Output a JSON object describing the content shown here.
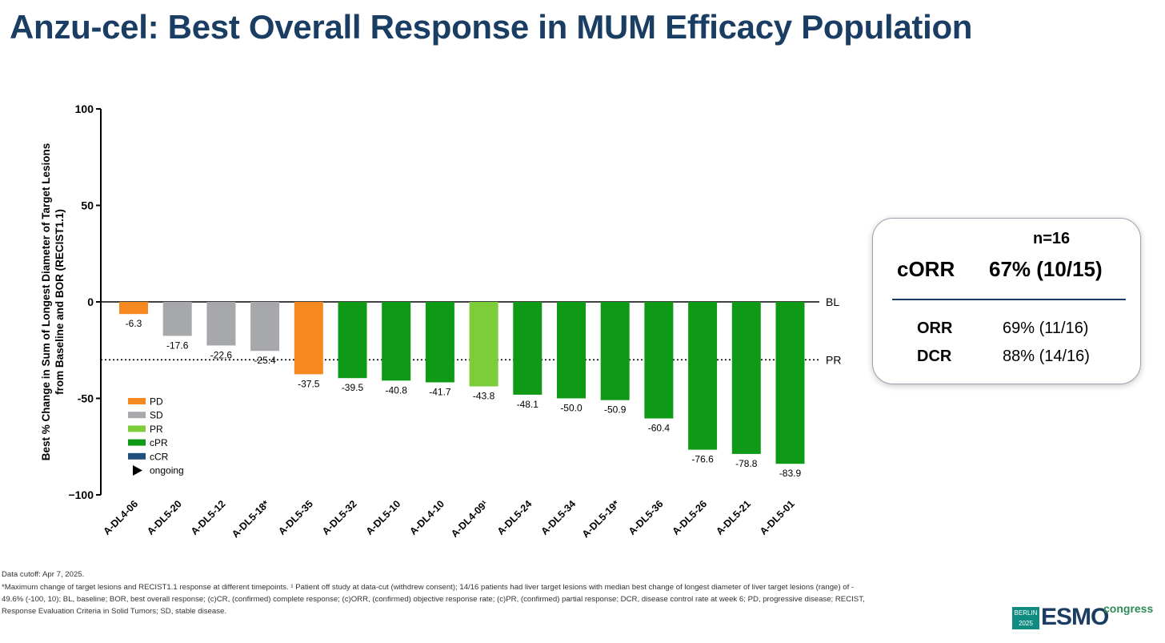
{
  "title": "Anzu-cel: Best Overall Response in MUM Efficacy Population",
  "chart_data": {
    "type": "bar",
    "title": "",
    "ylabel_line1": "Best % Change in Sum of Longest Diameter of Target Lesions",
    "ylabel_line2": "from Baseline and BOR (RECIST1.1)",
    "ylim": [
      -100,
      100
    ],
    "yticks": [
      "100",
      "50",
      "0",
      "-50",
      "−100"
    ],
    "yticks_values": [
      100,
      50,
      0,
      -50,
      -100
    ],
    "reference_lines": [
      {
        "label": "BL",
        "value": 0,
        "style": "solid"
      },
      {
        "label": "PR",
        "value": -30,
        "style": "dotted"
      }
    ],
    "categories": [
      "A-DL4-06",
      "A-DL5-20",
      "A-DL5-12",
      "A-DL5-18*",
      "A-DL5-35",
      "A-DL5-32",
      "A-DL5-10",
      "A-DL4-10",
      "A-DL4-09¹",
      "A-DL5-24",
      "A-DL5-34",
      "A-DL5-19*",
      "A-DL5-36",
      "A-DL5-26",
      "A-DL5-21",
      "A-DL5-01"
    ],
    "values": [
      -6.3,
      -17.6,
      -22.6,
      -25.4,
      -37.5,
      -39.5,
      -40.8,
      -41.7,
      -43.8,
      -48.1,
      -50.0,
      -50.9,
      -60.4,
      -76.6,
      -78.8,
      -83.9
    ],
    "value_labels": [
      "-6.3",
      "-17.6",
      "-22.6",
      "-25.4",
      "-37.5",
      "-39.5",
      "-40.8",
      "-41.7",
      "-43.8",
      "-48.1",
      "-50.0",
      "-50.9",
      "-60.4",
      "-76.6",
      "-78.8",
      "-83.9"
    ],
    "response": [
      "PD",
      "SD",
      "SD",
      "SD",
      "PD",
      "cPR",
      "cPR",
      "cPR",
      "PR",
      "cPR",
      "cPR",
      "cPR",
      "cPR",
      "cPR",
      "cPR",
      "cPR"
    ],
    "legend": [
      {
        "label": "PD",
        "color": "#f5891f"
      },
      {
        "label": "SD",
        "color": "#a6a8ab"
      },
      {
        "label": "PR",
        "color": "#7dcc3a"
      },
      {
        "label": "cPR",
        "color": "#0e9a16"
      },
      {
        "label": "cCR",
        "color": "#1f4f7a"
      },
      {
        "label": "ongoing",
        "marker": "triangle"
      }
    ],
    "legend_position": "bottom-left"
  },
  "stats": {
    "n_label": "n=16",
    "corr_label": "cORR",
    "corr_value": "67% (10/15)",
    "rows": [
      {
        "label": "ORR",
        "value": "69% (11/16)"
      },
      {
        "label": "DCR",
        "value": "88% (14/16)"
      }
    ]
  },
  "footnotes": {
    "line1": "Data cutoff: Apr 7, 2025.",
    "line2": "*Maximum change of target lesions and RECIST1.1 response at different timepoints. ¹ Patient off study at data-cut (withdrew consent); 14/16 patients had liver target lesions with median best change of longest diameter of liver target lesions (range) of -",
    "line3": "49.6% (-100, 10); BL, baseline; BOR, best overall response; (c)CR, (confirmed) complete response; (c)ORR, (confirmed) objective response rate; (c)PR, (confirmed) partial response; DCR, disease control rate at week 6; PD, progressive disease; RECIST,",
    "line4": "Response Evaluation Criteria in Solid Tumors; SD, stable disease."
  },
  "logo": {
    "city": "BERLIN",
    "year": "2025",
    "word": "ESMO",
    "suffix": "congress"
  }
}
